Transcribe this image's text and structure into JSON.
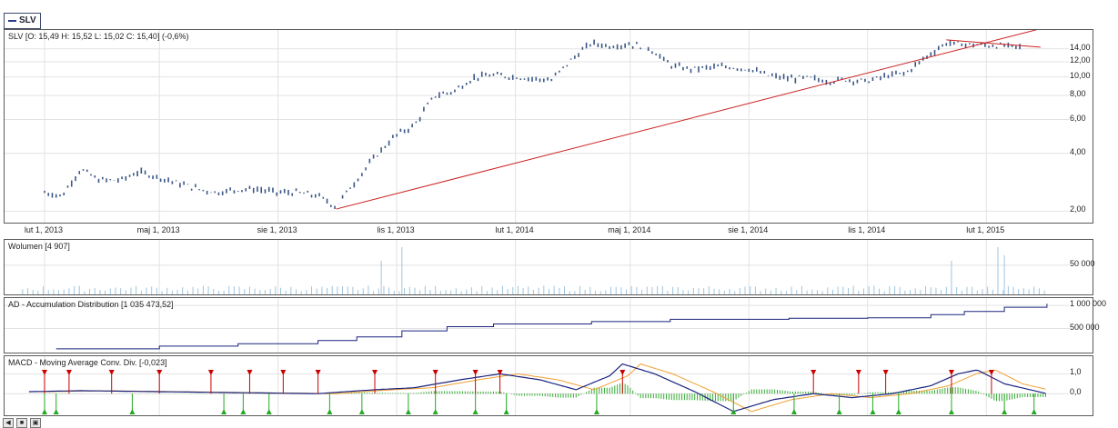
{
  "symbol_tab": "SLV",
  "colors": {
    "price": "#3a5585",
    "trend": "#cc2222",
    "volume": "#9fc4de",
    "ad": "#1a237e",
    "macd": "#1a237e",
    "signal": "#f0a030",
    "hist": "#33aa33",
    "buy": "#22aa22",
    "sell": "#cc0000"
  },
  "panels": {
    "price_title": "SLV [O: 15,49  H: 15,52  L: 15,02  C: 15,40] (-0,6%)",
    "volume_title": "Wolumen [4 907]",
    "ad_title": "AD - Accumulation Distribution [1 035 473,52]",
    "macd_title": "MACD - Moving Average Conv. Div. [-0,023]"
  },
  "chart_data": [
    {
      "type": "line",
      "series_type": "ohlc",
      "x": [
        "2013-02-01",
        "2013-02-15",
        "2013-03-01",
        "2013-03-15",
        "2013-04-01",
        "2013-04-15",
        "2013-05-01",
        "2013-05-15",
        "2013-06-01",
        "2013-06-15",
        "2013-07-01",
        "2013-07-15",
        "2013-08-01",
        "2013-08-15",
        "2013-09-01",
        "2013-09-15",
        "2013-10-01",
        "2013-10-15",
        "2013-11-01",
        "2013-11-15",
        "2013-12-01",
        "2013-12-15",
        "2014-01-01",
        "2014-01-15",
        "2014-02-01",
        "2014-02-15",
        "2014-03-01",
        "2014-03-15",
        "2014-04-01",
        "2014-04-15",
        "2014-05-01",
        "2014-05-15",
        "2014-06-01",
        "2014-06-15",
        "2014-07-01",
        "2014-07-15",
        "2014-08-01",
        "2014-08-15",
        "2014-09-01",
        "2014-09-15",
        "2014-10-01",
        "2014-10-15",
        "2014-11-01",
        "2014-11-15",
        "2014-12-01",
        "2014-12-15",
        "2015-01-01",
        "2015-01-15",
        "2015-02-01",
        "2015-02-15",
        "2015-03-01"
      ],
      "values": [
        2.5,
        2.4,
        3.3,
        2.9,
        2.9,
        3.2,
        3.0,
        2.8,
        2.6,
        2.5,
        2.6,
        2.6,
        2.5,
        2.5,
        2.4,
        2.1,
        2.9,
        3.8,
        5.0,
        5.6,
        8.0,
        8.4,
        10.0,
        10.2,
        10.0,
        9.8,
        9.6,
        12.0,
        15.0,
        14.5,
        14.8,
        14.2,
        11.5,
        11.0,
        11.2,
        11.3,
        11.0,
        10.2,
        9.8,
        9.9,
        9.5,
        9.7,
        9.5,
        10.1,
        10.5,
        12.5,
        15.0,
        14.8,
        14.6,
        14.5,
        14.3
      ],
      "trendlines": [
        {
          "from": [
            "2013-09-15",
            2.05
          ],
          "to": [
            "2015-03-31",
            19.0
          ]
        },
        {
          "from": [
            "2015-01-01",
            15.6
          ],
          "to": [
            "2015-03-15",
            14.3
          ]
        }
      ],
      "y_scale": "log",
      "ylim": [
        1.8,
        17
      ],
      "x_ticks": [
        "lut 1, 2013",
        "maj 1, 2013",
        "sie 1, 2013",
        "lis 1, 2013",
        "lut 1, 2014",
        "maj 1, 2014",
        "sie 1, 2014",
        "lis 1, 2014",
        "lut 1, 2015"
      ],
      "x_tick_dates": [
        "2013-02-01",
        "2013-05-01",
        "2013-08-01",
        "2013-11-01",
        "2014-02-01",
        "2014-05-01",
        "2014-08-01",
        "2014-11-01",
        "2015-02-01"
      ],
      "y_ticks": [
        "2,00",
        "4,00",
        "6,00",
        "8,00",
        "10,00",
        "12,00",
        "14,00"
      ],
      "y_tick_values": [
        2,
        4,
        6,
        8,
        10,
        12,
        14
      ],
      "grid": true
    },
    {
      "type": "bar",
      "name": "volume",
      "x_start": "2013-01-15",
      "x_end": "2015-03-20",
      "spikes": [
        [
          "2013-10-20",
          58000
        ],
        [
          "2013-11-05",
          82000
        ],
        [
          "2015-01-05",
          58000
        ],
        [
          "2015-02-10",
          82000
        ],
        [
          "2015-02-15",
          68000
        ]
      ],
      "ylim": [
        0,
        90000
      ],
      "y_ticks": [
        "50 000"
      ],
      "y_tick_values": [
        50000
      ],
      "grid": true
    },
    {
      "type": "line",
      "name": "accumulation-distribution",
      "x": [
        "2013-02-10",
        "2013-05-01",
        "2013-07-01",
        "2013-09-01",
        "2013-10-01",
        "2013-11-05",
        "2013-12-10",
        "2014-01-15",
        "2014-04-01",
        "2014-06-01",
        "2014-09-01",
        "2014-11-01",
        "2014-12-20",
        "2015-01-15",
        "2015-02-15",
        "2015-03-20"
      ],
      "values": [
        60000,
        120000,
        170000,
        240000,
        320000,
        450000,
        540000,
        600000,
        650000,
        700000,
        720000,
        730000,
        800000,
        870000,
        960000,
        1035000
      ],
      "ylim": [
        0,
        1100000
      ],
      "y_ticks": [
        "500 000",
        "1 000 000"
      ],
      "y_tick_values": [
        500000,
        1000000
      ],
      "grid": true
    },
    {
      "type": "line",
      "name": "macd",
      "x": [
        "2013-01-20",
        "2013-03-01",
        "2013-05-01",
        "2013-07-01",
        "2013-09-01",
        "2013-10-15",
        "2013-11-15",
        "2013-12-20",
        "2014-01-20",
        "2014-02-20",
        "2014-03-20",
        "2014-04-15",
        "2014-04-25",
        "2014-05-20",
        "2014-06-20",
        "2014-07-20",
        "2014-08-20",
        "2014-09-20",
        "2014-10-20",
        "2014-11-20",
        "2014-12-20",
        "2015-01-10",
        "2015-01-25",
        "2015-02-15",
        "2015-03-20"
      ],
      "values": [
        0.1,
        0.15,
        0.1,
        0.05,
        0.0,
        0.2,
        0.3,
        0.7,
        1.0,
        0.7,
        0.2,
        0.9,
        1.5,
        1.0,
        0.1,
        -0.9,
        -0.3,
        0.0,
        -0.2,
        0.0,
        0.4,
        1.0,
        1.2,
        0.5,
        0.0
      ],
      "ylim": [
        -1.0,
        1.8
      ],
      "y_ticks": [
        "0,0",
        "1,0"
      ],
      "y_tick_values": [
        0,
        1
      ],
      "sell_markers": [
        "2013-02-01",
        "2013-02-20",
        "2013-03-25",
        "2013-05-01",
        "2013-06-10",
        "2013-07-10",
        "2013-08-05",
        "2013-09-01",
        "2013-10-15",
        "2013-12-01",
        "2014-01-01",
        "2014-01-20",
        "2014-04-25",
        "2014-09-20",
        "2014-10-25",
        "2014-11-15",
        "2015-01-05",
        "2015-02-05"
      ],
      "buy_markers": [
        "2013-02-01",
        "2013-02-10",
        "2013-04-10",
        "2013-06-20",
        "2013-07-05",
        "2013-07-25",
        "2013-09-10",
        "2013-10-05",
        "2013-11-10",
        "2013-12-01",
        "2014-01-01",
        "2014-01-25",
        "2014-04-05",
        "2014-07-20",
        "2014-09-05",
        "2014-10-10",
        "2014-11-05",
        "2014-11-25",
        "2015-01-05",
        "2015-02-15",
        "2015-03-10"
      ],
      "grid": true
    }
  ]
}
